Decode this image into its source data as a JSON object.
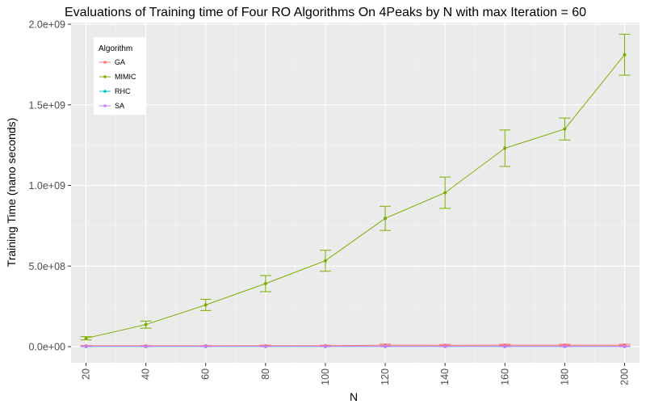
{
  "chart_data": {
    "type": "line",
    "title": "Evaluations of Training time of Four RO Algorithms On 4Peaks by N with max Iteration = 60",
    "xlabel": "N",
    "ylabel": "Training Time (nano seconds)",
    "x": [
      20,
      40,
      60,
      80,
      100,
      120,
      140,
      160,
      180,
      200
    ],
    "xlim": [
      15,
      205
    ],
    "ylim": [
      -100000000,
      2010000000
    ],
    "y_ticks": [
      0,
      500000000,
      1000000000,
      1500000000,
      2000000000
    ],
    "y_tick_labels": [
      "0.0e+00",
      "5.0e+08",
      "1.0e+09",
      "1.5e+09",
      "2.0e+09"
    ],
    "x_tick_labels": [
      "20",
      "40",
      "60",
      "80",
      "100",
      "120",
      "140",
      "160",
      "180",
      "200"
    ],
    "grid": true,
    "error_bars": true,
    "legend": {
      "title": "Algorithm",
      "position": "top-left"
    },
    "series": [
      {
        "name": "GA",
        "color": "#F8766D",
        "values": [
          5000000,
          5000000,
          5000000,
          6000000,
          6000000,
          10000000,
          9000000,
          10000000,
          10000000,
          10000000
        ],
        "err": [
          2000000,
          2000000,
          2000000,
          3000000,
          3000000,
          6000000,
          5000000,
          5000000,
          5000000,
          5000000
        ]
      },
      {
        "name": "MIMIC",
        "color": "#7CAE00",
        "values": [
          52000000,
          137000000,
          259000000,
          391000000,
          533000000,
          796000000,
          955000000,
          1231000000,
          1350000000,
          1811000000
        ],
        "err": [
          10000000,
          22000000,
          35000000,
          50000000,
          65000000,
          75000000,
          97000000,
          113000000,
          68000000,
          127000000
        ]
      },
      {
        "name": "RHC",
        "color": "#00BFC4",
        "values": [
          1000000,
          1000000,
          1000000,
          1000000,
          1000000,
          1000000,
          1000000,
          1000000,
          1000000,
          1000000
        ],
        "err": [
          500000,
          500000,
          500000,
          500000,
          500000,
          500000,
          500000,
          500000,
          500000,
          500000
        ]
      },
      {
        "name": "SA",
        "color": "#C77CFF",
        "values": [
          2000000,
          2000000,
          2000000,
          2000000,
          2000000,
          2000000,
          2000000,
          2000000,
          2000000,
          2000000
        ],
        "err": [
          1000000,
          1000000,
          1000000,
          1000000,
          1000000,
          1000000,
          1000000,
          1000000,
          1000000,
          1000000
        ]
      }
    ]
  }
}
